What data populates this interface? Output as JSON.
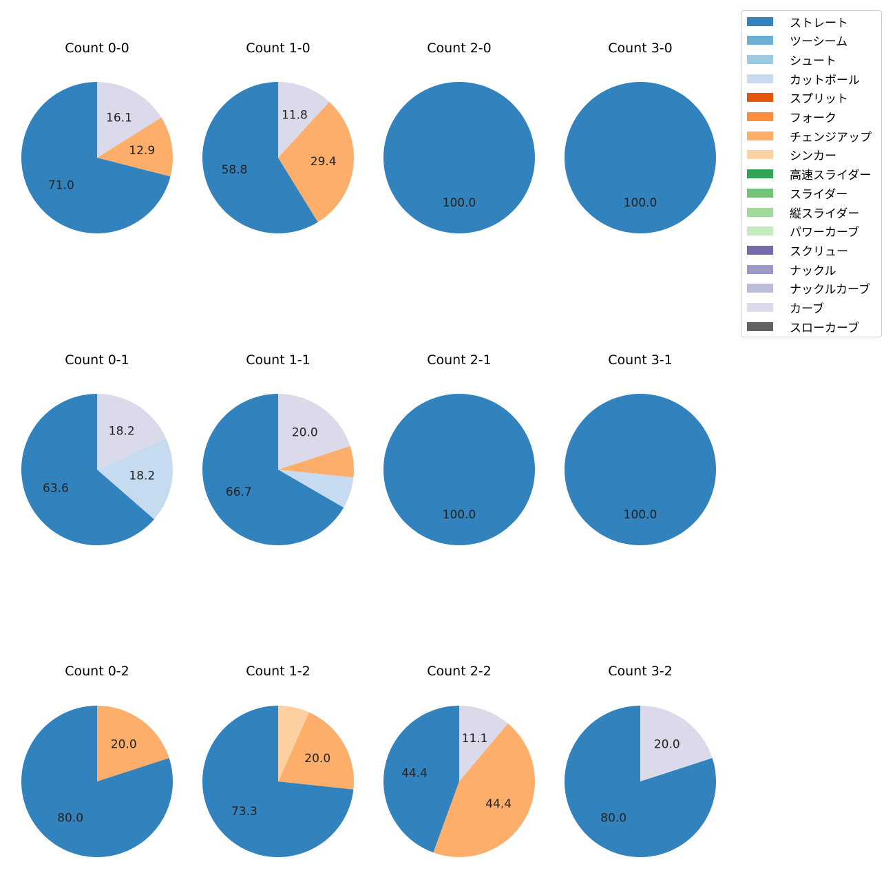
{
  "chart_data": {
    "type": "pie",
    "legend_position": "top-right",
    "legend": [
      {
        "name": "ストレート",
        "color": "#3182bd"
      },
      {
        "name": "ツーシーム",
        "color": "#6baed6"
      },
      {
        "name": "シュート",
        "color": "#9ecae1"
      },
      {
        "name": "カットボール",
        "color": "#c6dbef"
      },
      {
        "name": "スプリット",
        "color": "#e6550d"
      },
      {
        "name": "フォーク",
        "color": "#fd8d3c"
      },
      {
        "name": "チェンジアップ",
        "color": "#fdae6b"
      },
      {
        "name": "シンカー",
        "color": "#fdd0a2"
      },
      {
        "name": "高速スライダー",
        "color": "#31a354"
      },
      {
        "name": "スライダー",
        "color": "#74c476"
      },
      {
        "name": "縦スライダー",
        "color": "#a1d99b"
      },
      {
        "name": "パワーカーブ",
        "color": "#c7e9c0"
      },
      {
        "name": "スクリュー",
        "color": "#756bb1"
      },
      {
        "name": "ナックル",
        "color": "#9e9ac8"
      },
      {
        "name": "ナックルカーブ",
        "color": "#bcbddc"
      },
      {
        "name": "カーブ",
        "color": "#dadaeb"
      },
      {
        "name": "スローカーブ",
        "color": "#636363"
      }
    ],
    "pies": [
      {
        "title": "Count 0-0",
        "slices": [
          {
            "pitch": "ストレート",
            "value": 71.0,
            "label": "71.0"
          },
          {
            "pitch": "チェンジアップ",
            "value": 12.9,
            "label": "12.9"
          },
          {
            "pitch": "カーブ",
            "value": 16.1,
            "label": "16.1"
          }
        ]
      },
      {
        "title": "Count 1-0",
        "slices": [
          {
            "pitch": "ストレート",
            "value": 58.8,
            "label": "58.8"
          },
          {
            "pitch": "チェンジアップ",
            "value": 29.4,
            "label": "29.4"
          },
          {
            "pitch": "カーブ",
            "value": 11.8,
            "label": "11.8"
          }
        ]
      },
      {
        "title": "Count 2-0",
        "slices": [
          {
            "pitch": "ストレート",
            "value": 100.0,
            "label": "100.0"
          }
        ]
      },
      {
        "title": "Count 3-0",
        "slices": [
          {
            "pitch": "ストレート",
            "value": 100.0,
            "label": "100.0"
          }
        ]
      },
      {
        "title": "Count 0-1",
        "slices": [
          {
            "pitch": "ストレート",
            "value": 63.6,
            "label": "63.6"
          },
          {
            "pitch": "カットボール",
            "value": 18.2,
            "label": "18.2"
          },
          {
            "pitch": "カーブ",
            "value": 18.2,
            "label": "18.2"
          }
        ]
      },
      {
        "title": "Count 1-1",
        "slices": [
          {
            "pitch": "ストレート",
            "value": 66.7,
            "label": "66.7"
          },
          {
            "pitch": "カットボール",
            "value": 6.7,
            "label": ""
          },
          {
            "pitch": "チェンジアップ",
            "value": 6.7,
            "label": ""
          },
          {
            "pitch": "カーブ",
            "value": 20.0,
            "label": "20.0"
          }
        ]
      },
      {
        "title": "Count 2-1",
        "slices": [
          {
            "pitch": "ストレート",
            "value": 100.0,
            "label": "100.0"
          }
        ]
      },
      {
        "title": "Count 3-1",
        "slices": [
          {
            "pitch": "ストレート",
            "value": 100.0,
            "label": "100.0"
          }
        ]
      },
      {
        "title": "Count 0-2",
        "slices": [
          {
            "pitch": "ストレート",
            "value": 80.0,
            "label": "80.0"
          },
          {
            "pitch": "チェンジアップ",
            "value": 20.0,
            "label": "20.0"
          }
        ]
      },
      {
        "title": "Count 1-2",
        "slices": [
          {
            "pitch": "ストレート",
            "value": 73.3,
            "label": "73.3"
          },
          {
            "pitch": "チェンジアップ",
            "value": 20.0,
            "label": "20.0"
          },
          {
            "pitch": "シンカー",
            "value": 6.7,
            "label": ""
          }
        ]
      },
      {
        "title": "Count 2-2",
        "slices": [
          {
            "pitch": "ストレート",
            "value": 44.4,
            "label": "44.4"
          },
          {
            "pitch": "チェンジアップ",
            "value": 44.4,
            "label": "44.4"
          },
          {
            "pitch": "カーブ",
            "value": 11.1,
            "label": "11.1"
          }
        ]
      },
      {
        "title": "Count 3-2",
        "slices": [
          {
            "pitch": "ストレート",
            "value": 80.0,
            "label": "80.0"
          },
          {
            "pitch": "カーブ",
            "value": 20.0,
            "label": "20.0"
          }
        ]
      }
    ]
  }
}
